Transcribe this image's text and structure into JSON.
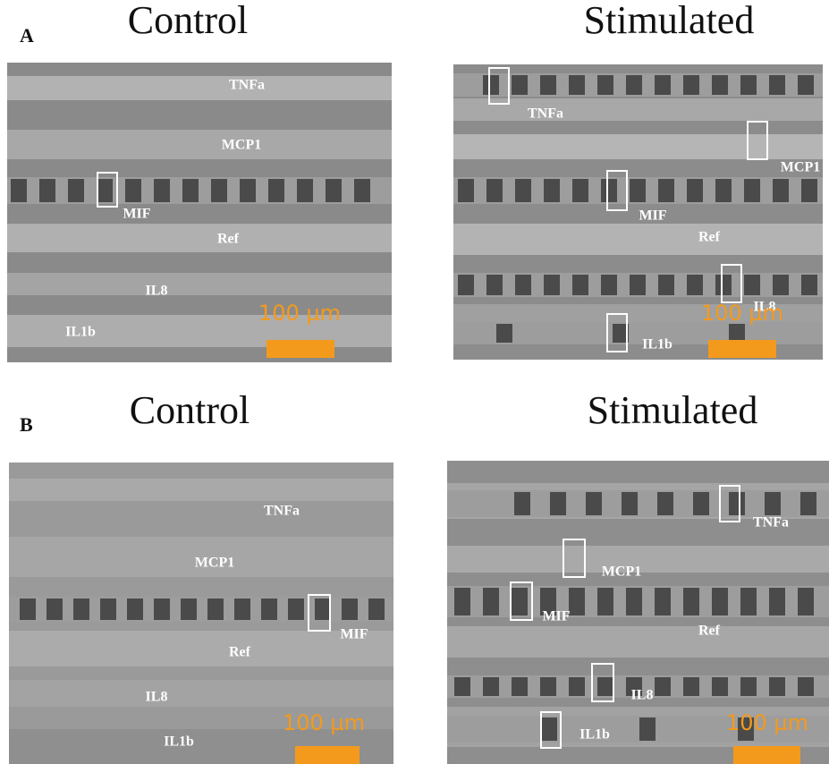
{
  "panels": [
    {
      "label": "A",
      "images": [
        {
          "title": "Control",
          "labels": [
            "TNFa",
            "MCP1",
            "MIF",
            "Ref",
            "IL8",
            "IL1b"
          ],
          "scale_bar": "100 µm"
        },
        {
          "title": "Stimulated",
          "labels": [
            "TNFa",
            "MCP1",
            "MIF",
            "Ref",
            "IL8",
            "IL1b"
          ],
          "scale_bar": "100 µm"
        }
      ]
    },
    {
      "label": "B",
      "images": [
        {
          "title": "Control",
          "labels": [
            "TNFa",
            "MCP1",
            "MIF",
            "Ref",
            "IL8",
            "IL1b"
          ],
          "scale_bar": "100 µm"
        },
        {
          "title": "Stimulated",
          "labels": [
            "TNFa",
            "MCP1",
            "MIF",
            "Ref",
            "IL8",
            "IL1b"
          ],
          "scale_bar": "100 µm"
        }
      ]
    }
  ]
}
